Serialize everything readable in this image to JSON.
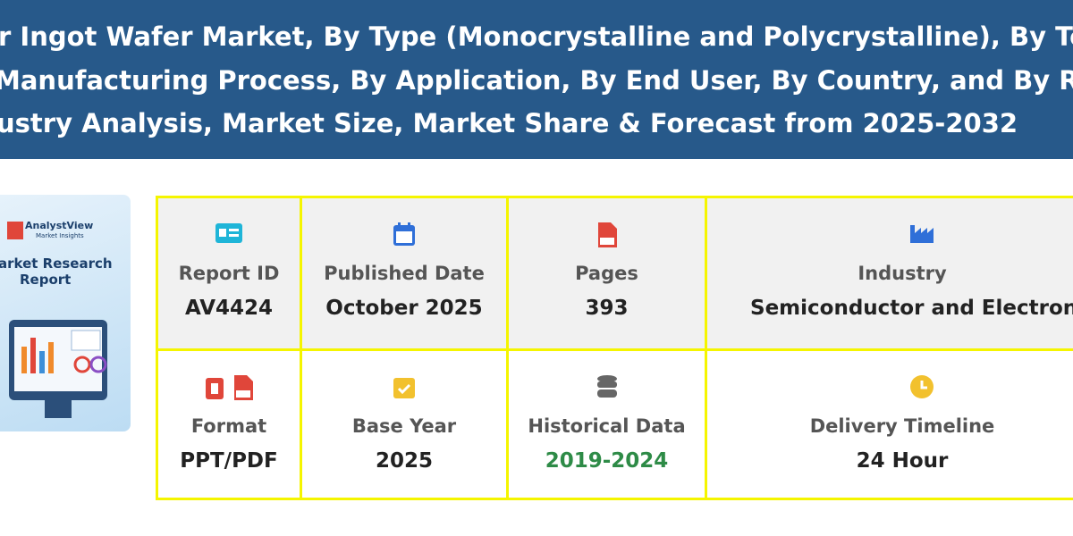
{
  "header": {
    "title_lines": [
      "r Ingot Wafer Market, By Type (Monocrystalline and Polycrystalline), By Technolo",
      "Manufacturing Process, By Application, By End User, By Country, and By Region G",
      "ustry Analysis, Market Size, Market Share & Forecast from 2025-2032"
    ]
  },
  "cover": {
    "brand": "AnalystView",
    "tagline": "Market Insights",
    "title_lines": [
      "arket Research",
      "Report"
    ]
  },
  "details": {
    "rows": [
      [
        {
          "label": "Report ID",
          "value": "AV4424"
        },
        {
          "label": "Published Date",
          "value": "October 2025"
        },
        {
          "label": "Pages",
          "value": "393"
        },
        {
          "label": "Industry",
          "value": "Semiconductor and Electronic"
        }
      ],
      [
        {
          "label": "Format",
          "value": "PPT/PDF"
        },
        {
          "label": "Base Year",
          "value": "2025"
        },
        {
          "label": "Historical Data",
          "value": "2019-2024"
        },
        {
          "label": "Delivery Timeline",
          "value": "24 Hour"
        }
      ]
    ]
  }
}
